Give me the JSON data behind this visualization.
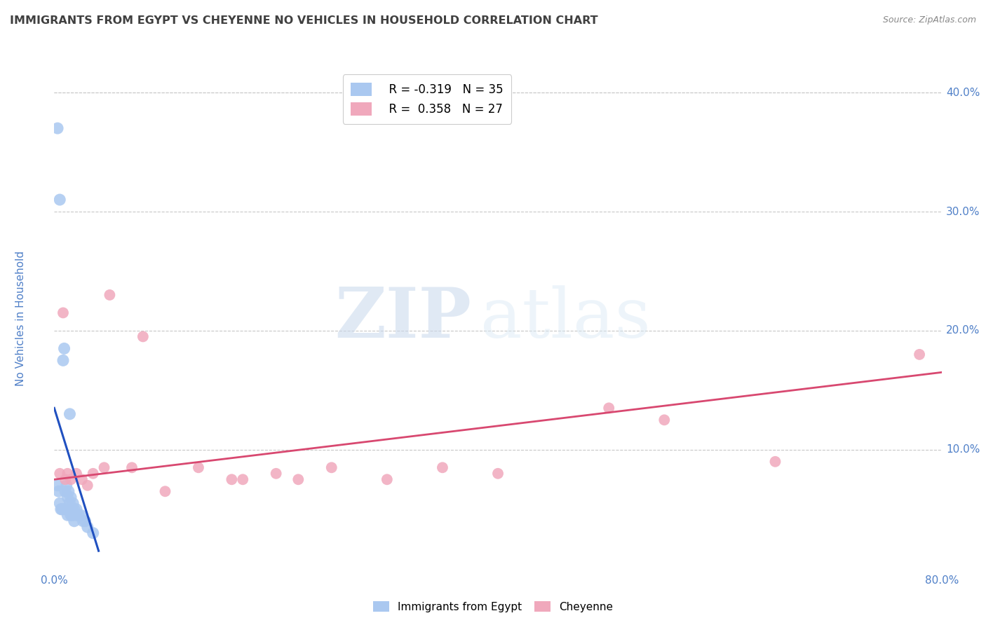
{
  "title": "IMMIGRANTS FROM EGYPT VS CHEYENNE NO VEHICLES IN HOUSEHOLD CORRELATION CHART",
  "source": "Source: ZipAtlas.com",
  "ylabel": "No Vehicles in Household",
  "legend_blue_r": "R = -0.319",
  "legend_blue_n": "N = 35",
  "legend_pink_r": "R =  0.358",
  "legend_pink_n": "N = 27",
  "blue_color": "#aac8f0",
  "pink_color": "#f0a8bc",
  "blue_line_color": "#2050c0",
  "pink_line_color": "#d84870",
  "watermark_zip": "ZIP",
  "watermark_atlas": "atlas",
  "blue_scatter_x": [
    0.3,
    0.3,
    0.4,
    0.5,
    0.5,
    0.6,
    0.7,
    0.8,
    0.8,
    0.9,
    1.0,
    1.0,
    1.1,
    1.1,
    1.2,
    1.2,
    1.3,
    1.4,
    1.4,
    1.5,
    1.5,
    1.6,
    1.6,
    1.7,
    1.7,
    1.8,
    1.8,
    2.0,
    2.0,
    2.2,
    2.4,
    2.6,
    2.8,
    3.0,
    3.5
  ],
  "blue_scatter_y": [
    37.0,
    7.0,
    6.5,
    31.0,
    5.5,
    5.0,
    5.0,
    17.5,
    5.0,
    18.5,
    6.5,
    5.0,
    7.0,
    5.0,
    6.0,
    4.5,
    6.5,
    13.0,
    5.5,
    6.0,
    4.5,
    5.0,
    4.5,
    5.5,
    4.5,
    5.0,
    4.0,
    5.0,
    4.5,
    4.5,
    4.5,
    4.0,
    4.0,
    3.5,
    3.0
  ],
  "pink_scatter_x": [
    0.5,
    0.8,
    1.0,
    1.2,
    1.5,
    2.0,
    2.5,
    3.0,
    3.5,
    4.5,
    5.0,
    7.0,
    8.0,
    10.0,
    13.0,
    16.0,
    17.0,
    20.0,
    22.0,
    25.0,
    30.0,
    35.0,
    40.0,
    50.0,
    55.0,
    65.0,
    78.0
  ],
  "pink_scatter_y": [
    8.0,
    21.5,
    7.5,
    8.0,
    7.5,
    8.0,
    7.5,
    7.0,
    8.0,
    8.5,
    23.0,
    8.5,
    19.5,
    6.5,
    8.5,
    7.5,
    7.5,
    8.0,
    7.5,
    8.5,
    7.5,
    8.5,
    8.0,
    13.5,
    12.5,
    9.0,
    18.0
  ],
  "blue_line_x": [
    0.0,
    4.0
  ],
  "blue_line_y": [
    13.5,
    1.5
  ],
  "pink_line_x": [
    0.0,
    80.0
  ],
  "pink_line_y": [
    7.5,
    16.5
  ],
  "xmin": 0,
  "xmax": 80,
  "ymin": 0,
  "ymax": 42,
  "ytick_vals": [
    10,
    20,
    30,
    40
  ],
  "xtick_vals": [
    0,
    80
  ],
  "grid_color": "#c8c8c8",
  "bg_color": "#ffffff",
  "title_color": "#404040",
  "axis_label_color": "#5080c8",
  "right_axis_color": "#5080c8",
  "source_color": "#888888"
}
